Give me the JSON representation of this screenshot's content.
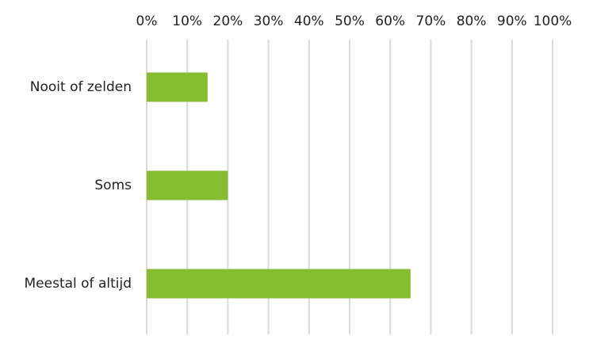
{
  "chart_data": {
    "type": "barh",
    "categories": [
      "Nooit of zelden",
      "Soms",
      "Meestal of altijd"
    ],
    "values": [
      15,
      20,
      65
    ],
    "color": "#86bc2f",
    "xlim": [
      0,
      100
    ],
    "xticks": [
      {
        "value": 0,
        "label": "0%"
      },
      {
        "value": 10,
        "label": "10%"
      },
      {
        "value": 20,
        "label": "20%"
      },
      {
        "value": 30,
        "label": "30%"
      },
      {
        "value": 40,
        "label": "40%"
      },
      {
        "value": 50,
        "label": "50%"
      },
      {
        "value": 60,
        "label": "60%"
      },
      {
        "value": 70,
        "label": "70%"
      },
      {
        "value": 80,
        "label": "80%"
      },
      {
        "value": 90,
        "label": "90%"
      },
      {
        "value": 100,
        "label": "100%"
      }
    ],
    "grid": true
  }
}
